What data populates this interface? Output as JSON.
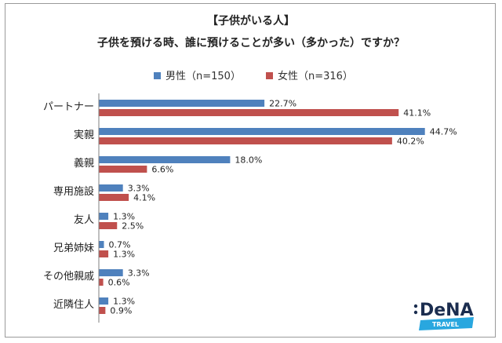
{
  "title": {
    "line1": "【子供がいる人】",
    "line2": "子供を預ける時、誰に預けることが多い（多かった）ですか？"
  },
  "colors": {
    "male": "#4f81bd",
    "female": "#c0504d",
    "axis": "#7f7f7f",
    "frame": "#9a9a9a"
  },
  "logo": {
    "text": "DeNA",
    "subtext": "TRAVEL",
    "text_color": "#1b2d4f",
    "band_color": "#29a7df"
  },
  "chart_data": {
    "type": "bar",
    "orientation": "horizontal",
    "categories": [
      "パートナー",
      "実親",
      "義親",
      "専用施設",
      "友人",
      "兄弟姉妹",
      "その他親戚",
      "近隣住人"
    ],
    "series": [
      {
        "name": "男性（n=150）",
        "color": "#4f81bd",
        "values": [
          22.7,
          44.7,
          18.0,
          3.3,
          1.3,
          0.7,
          3.3,
          1.3
        ]
      },
      {
        "name": "女性（n=316）",
        "color": "#c0504d",
        "values": [
          41.1,
          40.2,
          6.6,
          4.1,
          2.5,
          1.3,
          0.6,
          0.9
        ]
      }
    ],
    "value_format": "percent_1dp",
    "xlim": [
      0,
      50
    ],
    "legend_position": "top",
    "grid": false
  }
}
